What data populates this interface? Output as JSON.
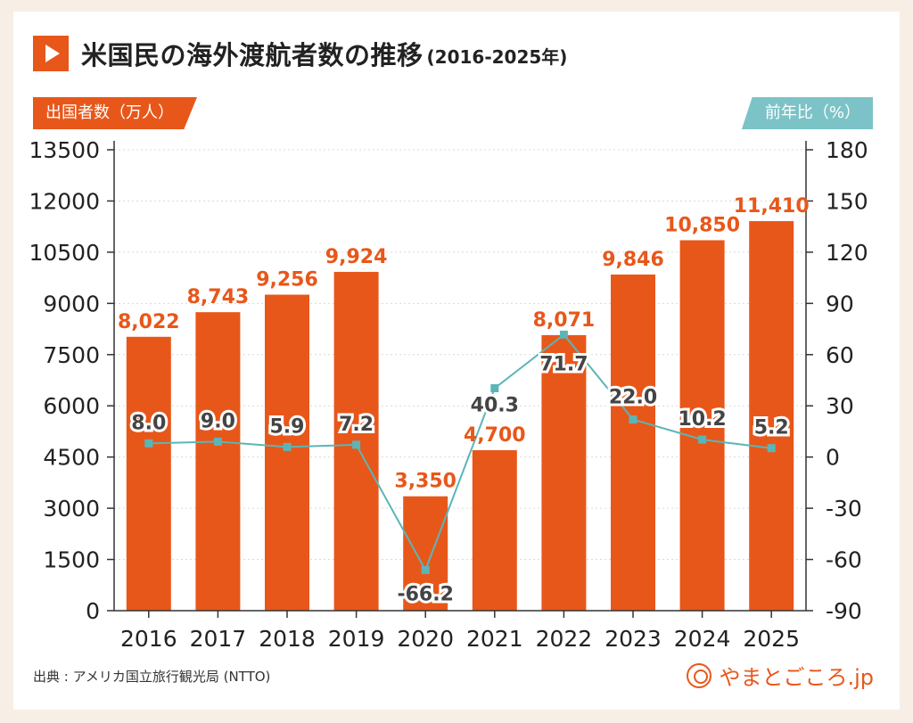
{
  "title": "米国民の海外渡航者数の推移",
  "title_sub": "(2016-2025年)",
  "source": "出典 : アメリカ国立旅行観光局 (NTTO)",
  "brand": "やまとごころ.jp",
  "colors": {
    "bar": "#e8571a",
    "line": "#5bb5b8",
    "accent_right": "#7cc3c7"
  },
  "icons": {
    "title": "play-icon",
    "brand": "yamatogokoro-logo-icon"
  },
  "chart_data": {
    "type": "bar",
    "categories": [
      "2016",
      "2017",
      "2018",
      "2019",
      "2020",
      "2021",
      "2022",
      "2023",
      "2024",
      "2025"
    ],
    "y_left_label": "出国者数（万人）",
    "y_right_label": "前年比（%）",
    "y_left_range": [
      0,
      13500
    ],
    "y_left_ticks": [
      0,
      1500,
      3000,
      4500,
      6000,
      7500,
      9000,
      10500,
      12000,
      13500
    ],
    "y_right_range": [
      -90,
      180
    ],
    "y_right_ticks": [
      -90,
      -60,
      -30,
      0,
      30,
      60,
      90,
      120,
      150,
      180
    ],
    "grid": true,
    "series": [
      {
        "name": "出国者数",
        "type": "bar",
        "axis": "left",
        "values": [
          8022,
          8743,
          9256,
          9924,
          3350,
          4700,
          8071,
          9846,
          10850,
          11410
        ],
        "labels": [
          "8,022",
          "8,743",
          "9,256",
          "9,924",
          "3,350",
          "4,700",
          "8,071",
          "9,846",
          "10,850",
          "11,410"
        ]
      },
      {
        "name": "前年比",
        "type": "line",
        "axis": "right",
        "values": [
          8.0,
          9.0,
          5.9,
          7.2,
          -66.2,
          40.3,
          71.7,
          22.0,
          10.2,
          5.2
        ],
        "labels": [
          "8.0",
          "9.0",
          "5.9",
          "7.2",
          "-66.2",
          "40.3",
          "71.7",
          "22.0",
          "10.2",
          "5.2"
        ]
      }
    ]
  }
}
